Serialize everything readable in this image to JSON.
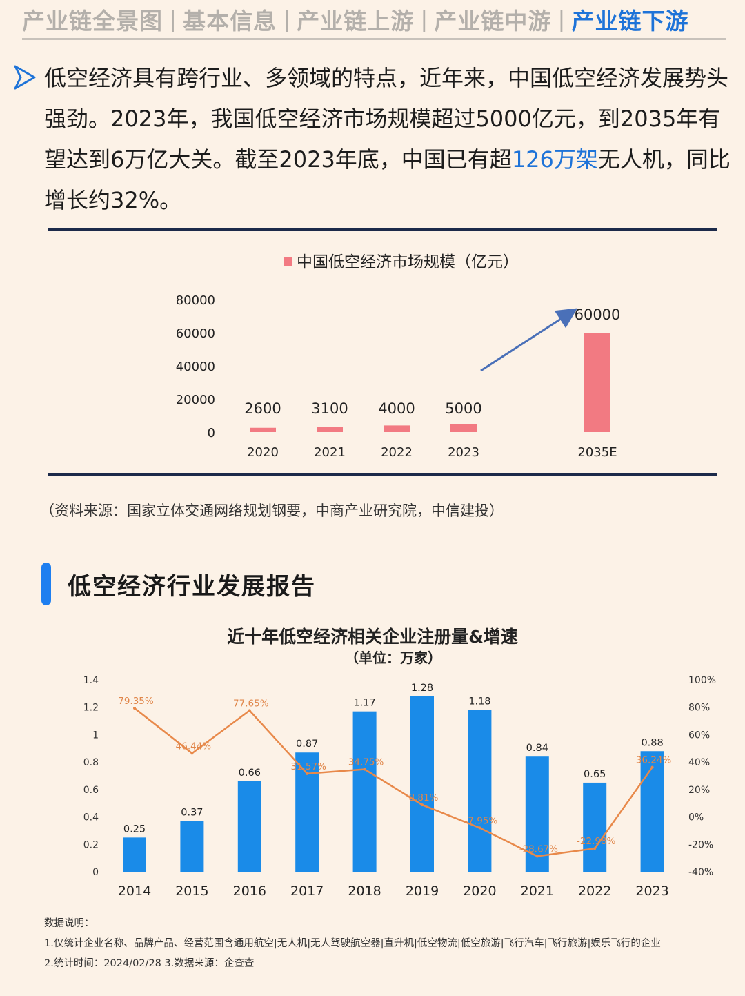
{
  "tabs": {
    "t1": "产业链全景图",
    "t2": "基本信息",
    "t3": "产业链上游",
    "t4": "产业链中游",
    "t5": "产业链下游",
    "separator": "|"
  },
  "intro": {
    "text_part1": "低空经济具有跨行业、多领域的特点，近年来，中国低空经济发展势头强劲。2023年，我国低空经济市场规模超过5000亿元，到2035年有望达到6万亿大关。截至2023年底，中国已有超",
    "highlight": "126万架",
    "text_part2": "无人机，同比增长约32%。"
  },
  "colors": {
    "accent": "#1e73d8",
    "bar_pink": "#f27a82",
    "bar_blue": "#1a8be8",
    "line_orange": "#e8894a",
    "rule": "#1c2a4a"
  },
  "source_text": "（资料来源：国家立体交通网络规划钢要，中商产业研究院，中信建投）",
  "section_title": "低空经济行业发展报告",
  "chart2_header": {
    "title": "近十年低空经济相关企业注册量&增速",
    "subtitle": "（单位：万家）"
  },
  "notes": {
    "heading": "数据说明：",
    "line1": "1.仅统计企业名称、品牌产品、经营范围含通用航空|无人机|无人驾驶航空器|直升机|低空物流|低空旅游|飞行汽车|飞行旅游|娱乐飞行的企业",
    "line2": "2.统计时间：2024/02/28    3.数据来源：企查查"
  },
  "chart_data": [
    {
      "type": "bar",
      "legend": "中国低空经济市场规模（亿元）",
      "categories": [
        "2020",
        "2021",
        "2022",
        "2023",
        "2035E"
      ],
      "values": [
        2600,
        3100,
        4000,
        5000,
        60000
      ],
      "data_labels": [
        "2600",
        "3100",
        "4000",
        "5000",
        "60000"
      ],
      "y_ticks": [
        "80000",
        "60000",
        "40000",
        "20000",
        "0"
      ],
      "ylim": [
        0,
        80000
      ],
      "annotation": "blue arrow from 2023 toward 2035E",
      "grid": false,
      "legend_position": "top-center"
    },
    {
      "type": "bar+line",
      "categories": [
        "2014",
        "2015",
        "2016",
        "2017",
        "2018",
        "2019",
        "2020",
        "2021",
        "2022",
        "2023"
      ],
      "series": [
        {
          "kind": "bar",
          "axis": "left",
          "values": [
            0.25,
            0.37,
            0.66,
            0.87,
            1.17,
            1.28,
            1.18,
            0.84,
            0.65,
            0.88
          ],
          "labels": [
            "0.25",
            "0.37",
            "0.66",
            "0.87",
            "1.17",
            "1.28",
            "1.18",
            "0.84",
            "0.65",
            "0.88"
          ]
        },
        {
          "kind": "line",
          "axis": "right",
          "values": [
            79.35,
            46.44,
            77.65,
            31.57,
            34.75,
            8.81,
            -7.95,
            -28.67,
            -22.98,
            36.24
          ],
          "labels": [
            "79.35%",
            "46.44%",
            "77.65%",
            "31.57%",
            "34.75%",
            "8.81%",
            "-7.95%",
            "-28.67%",
            "-22.98%",
            "36.24%"
          ]
        }
      ],
      "left_ticks": [
        "1.4",
        "1.2",
        "1",
        "0.8",
        "0.6",
        "0.4",
        "0.2",
        "0"
      ],
      "right_ticks": [
        "100%",
        "80%",
        "60%",
        "40%",
        "20%",
        "0%",
        "-20%",
        "-40%"
      ],
      "ylim_left": [
        0,
        1.4
      ],
      "ylim_right": [
        -40,
        100
      ],
      "grid": false
    }
  ]
}
